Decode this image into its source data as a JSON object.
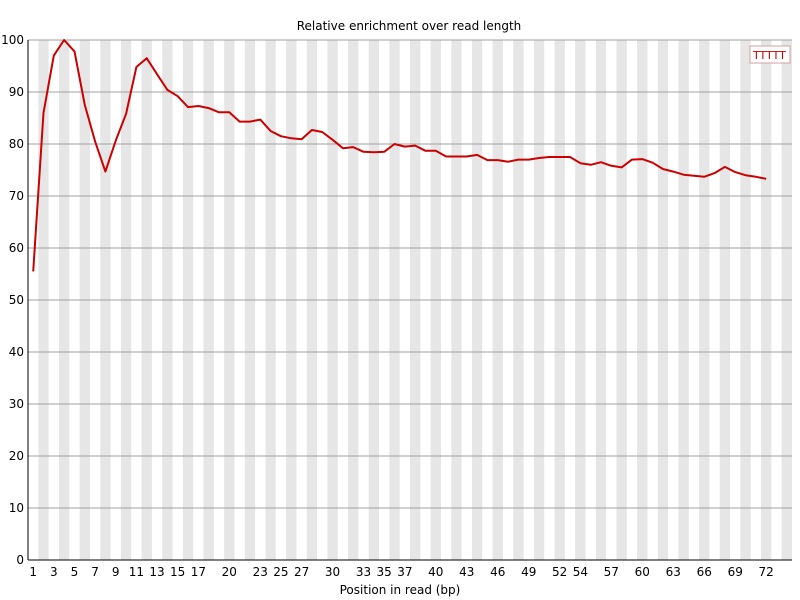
{
  "chart_data": {
    "type": "line",
    "title": "Relative enrichment over read length",
    "xlabel": "Position in read (bp)",
    "ylabel": "",
    "ylim": [
      0,
      100
    ],
    "yticks": [
      0,
      10,
      20,
      30,
      40,
      50,
      60,
      70,
      80,
      90,
      100
    ],
    "xticks": [
      1,
      3,
      5,
      7,
      9,
      11,
      13,
      15,
      17,
      20,
      23,
      25,
      27,
      30,
      33,
      35,
      37,
      40,
      43,
      46,
      49,
      52,
      54,
      57,
      60,
      63,
      66,
      69,
      72
    ],
    "x_positions": 74,
    "grid": true,
    "legend": {
      "placement": "top-right",
      "label": "TTTTT",
      "color": "#cc0000"
    },
    "series": [
      {
        "name": "TTTTT",
        "color": "#cc0000",
        "x": [
          1,
          2,
          3,
          4,
          5,
          6,
          7,
          8,
          9,
          10,
          11,
          12,
          13,
          14,
          15,
          16,
          17,
          18,
          19,
          20,
          21,
          22,
          23,
          24,
          25,
          26,
          27,
          28,
          29,
          30,
          31,
          32,
          33,
          34,
          35,
          36,
          37,
          38,
          39,
          40,
          41,
          42,
          43,
          44,
          45,
          46,
          47,
          48,
          49,
          50,
          51,
          52,
          53,
          54,
          55,
          56,
          57,
          58,
          59,
          60,
          61,
          62,
          63,
          64,
          65,
          66,
          67,
          68,
          69,
          70,
          71,
          72
        ],
        "values": [
          55.5,
          86,
          97,
          100,
          97.8,
          87.5,
          80.5,
          74.7,
          80.7,
          85.8,
          94.8,
          96.5,
          93.4,
          90.4,
          89.2,
          87.1,
          87.3,
          86.9,
          86.1,
          86.1,
          84.3,
          84.3,
          84.7,
          82.5,
          81.5,
          81.1,
          80.9,
          82.7,
          82.3,
          80.8,
          79.2,
          79.4,
          78.5,
          78.4,
          78.5,
          80,
          79.5,
          79.7,
          78.7,
          78.7,
          77.6,
          77.6,
          77.6,
          77.9,
          76.9,
          76.9,
          76.6,
          77,
          77,
          77.3,
          77.5,
          77.5,
          77.5,
          76.3,
          76,
          76.5,
          75.8,
          75.5,
          77,
          77.1,
          76.4,
          75.2,
          74.7,
          74.1,
          73.9,
          73.7,
          74.4,
          75.6,
          74.6,
          74,
          73.7,
          73.3
        ]
      }
    ]
  }
}
